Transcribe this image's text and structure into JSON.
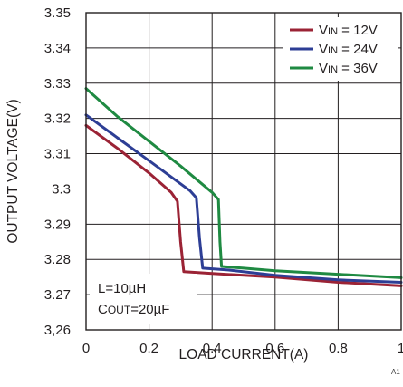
{
  "chart_data": {
    "type": "line",
    "title": "",
    "xlabel": "LOAD CURRENT(A)",
    "ylabel": "OUTPUT VOLTAGE(V)",
    "xlim": [
      0,
      1
    ],
    "ylim": [
      3.26,
      3.35
    ],
    "x_ticks": [
      0,
      0.2,
      0.4,
      0.6,
      0.8,
      1
    ],
    "x_tick_labels": [
      "0",
      "0.2",
      "0.4",
      "0.6",
      "0.8",
      "1"
    ],
    "y_ticks": [
      3.26,
      3.27,
      3.28,
      3.29,
      3.3,
      3.31,
      3.32,
      3.33,
      3.34,
      3.35
    ],
    "y_tick_labels": [
      "3,26",
      "3.27",
      "3.28",
      "3.29",
      "3.3",
      "3.31",
      "3.32",
      "3.33",
      "3.34",
      "3.35"
    ],
    "grid": true,
    "legend_position": "top-right",
    "series": [
      {
        "name_parts": [
          "V",
          "IN",
          " = 12V"
        ],
        "color": "#9b2335",
        "x": [
          0,
          0.1,
          0.2,
          0.27,
          0.29,
          0.3,
          0.31,
          0.4,
          0.6,
          0.8,
          1
        ],
        "y": [
          3.318,
          3.3115,
          3.3045,
          3.299,
          3.2965,
          3.285,
          3.2765,
          3.276,
          3.275,
          3.2735,
          3.2725
        ]
      },
      {
        "name_parts": [
          "V",
          "IN",
          " = 24V"
        ],
        "color": "#2d3e95",
        "x": [
          0,
          0.1,
          0.2,
          0.33,
          0.35,
          0.36,
          0.37,
          0.45,
          0.6,
          0.8,
          1
        ],
        "y": [
          3.321,
          3.3145,
          3.308,
          3.2995,
          3.2975,
          3.286,
          3.2775,
          3.277,
          3.2755,
          3.2742,
          3.2735
        ]
      },
      {
        "name_parts": [
          "V",
          "IN",
          " = 36V"
        ],
        "color": "#1f8a42",
        "x": [
          0,
          0.1,
          0.2,
          0.3,
          0.4,
          0.42,
          0.425,
          0.43,
          0.5,
          0.6,
          0.8,
          1
        ],
        "y": [
          3.3285,
          3.3205,
          3.3135,
          3.3065,
          3.299,
          3.297,
          3.285,
          3.278,
          3.2775,
          3.2768,
          3.2758,
          3.2748
        ]
      }
    ],
    "annotation": {
      "line1": "L=10µH",
      "line2_parts": [
        "C",
        "OUT",
        "=20µF"
      ]
    },
    "figure_id": "A1"
  }
}
